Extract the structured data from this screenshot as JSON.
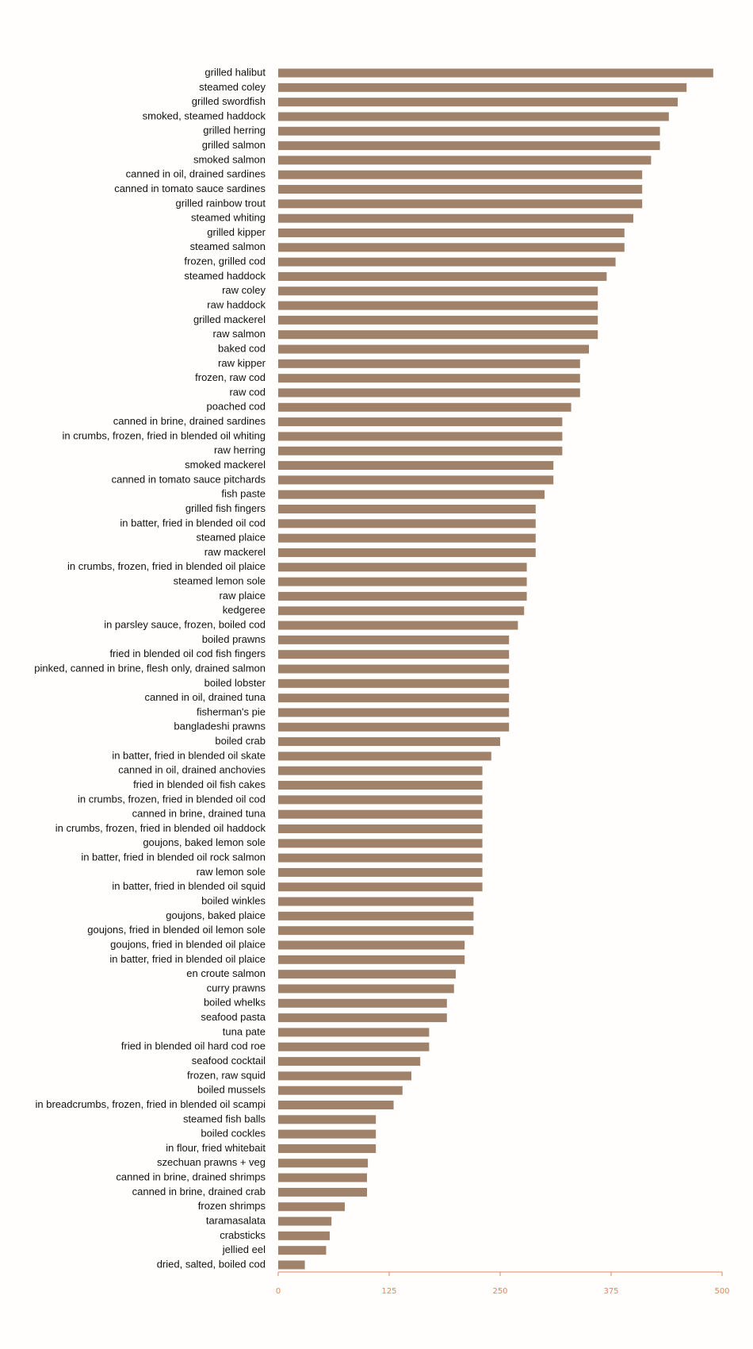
{
  "chart_data": {
    "type": "barh",
    "color": "#a0826a",
    "axis_color": "#e8825a",
    "categories": [
      "grilled halibut",
      "steamed coley",
      "grilled swordfish",
      "smoked, steamed haddock",
      "grilled herring",
      "grilled salmon",
      "smoked salmon",
      "canned in oil, drained sardines",
      "canned in tomato sauce sardines",
      "grilled rainbow trout",
      "steamed whiting",
      "grilled kipper",
      "steamed salmon",
      "frozen, grilled cod",
      "steamed haddock",
      "raw coley",
      "raw haddock",
      "grilled mackerel",
      "raw salmon",
      "baked cod",
      "raw kipper",
      "frozen, raw cod",
      "raw cod",
      "poached cod",
      "canned in brine, drained sardines",
      "in crumbs, frozen, fried in blended oil whiting",
      "raw herring",
      "smoked mackerel",
      "canned in tomato sauce pitchards",
      "fish paste",
      "grilled fish fingers",
      "in batter, fried in blended oil cod",
      "steamed plaice",
      "raw mackerel",
      "in crumbs, frozen, fried in blended oil plaice",
      "steamed lemon sole",
      "raw plaice",
      "kedgeree",
      "in parsley sauce, frozen, boiled cod",
      "boiled prawns",
      "fried in blended oil cod fish fingers",
      "pinked, canned in brine, flesh only, drained salmon",
      "boiled lobster",
      "canned in oil, drained tuna",
      "fisherman's pie",
      "bangladeshi prawns",
      "boiled crab",
      "in batter, fried in blended oil skate",
      "canned in oil, drained anchovies",
      "fried in blended oil fish cakes",
      "in crumbs, frozen, fried in blended oil cod",
      "canned in brine, drained tuna",
      "in crumbs, frozen, fried in blended oil haddock",
      "goujons, baked lemon sole",
      "in batter, fried in blended oil rock salmon",
      "raw lemon sole",
      "in batter, fried in blended oil squid",
      "boiled winkles",
      "goujons, baked plaice",
      "goujons, fried in blended oil lemon sole",
      "goujons, fried in blended oil plaice",
      "in batter, fried in blended oil plaice",
      "en croute salmon",
      "curry prawns",
      "boiled whelks",
      "seafood pasta",
      "tuna pate",
      "fried in blended oil hard cod roe",
      "seafood cocktail",
      "frozen, raw squid",
      "boiled mussels",
      "in breadcrumbs, frozen, fried in blended oil scampi",
      "steamed fish balls",
      "boiled cockles",
      "in flour, fried whitebait",
      "szechuan prawns + veg",
      "canned in brine, drained shrimps",
      "canned in brine, drained crab",
      "frozen shrimps",
      "taramasalata",
      "crabsticks",
      "jellied eel",
      "dried, salted, boiled cod"
    ],
    "values": [
      490,
      460,
      450,
      440,
      430,
      430,
      420,
      410,
      410,
      410,
      400,
      390,
      390,
      380,
      370,
      360,
      360,
      360,
      360,
      350,
      340,
      340,
      340,
      330,
      320,
      320,
      320,
      310,
      310,
      300,
      290,
      290,
      290,
      290,
      280,
      280,
      280,
      277,
      270,
      260,
      260,
      260,
      260,
      260,
      260,
      260,
      250,
      240,
      230,
      230,
      230,
      230,
      230,
      230,
      230,
      230,
      230,
      220,
      220,
      220,
      210,
      210,
      200,
      198,
      190,
      190,
      170,
      170,
      160,
      150,
      140,
      130,
      110,
      110,
      110,
      101,
      100,
      100,
      75,
      60,
      58,
      54,
      30
    ],
    "xlim": [
      0,
      500
    ],
    "xticks": [
      0,
      125,
      250,
      375,
      500
    ]
  }
}
